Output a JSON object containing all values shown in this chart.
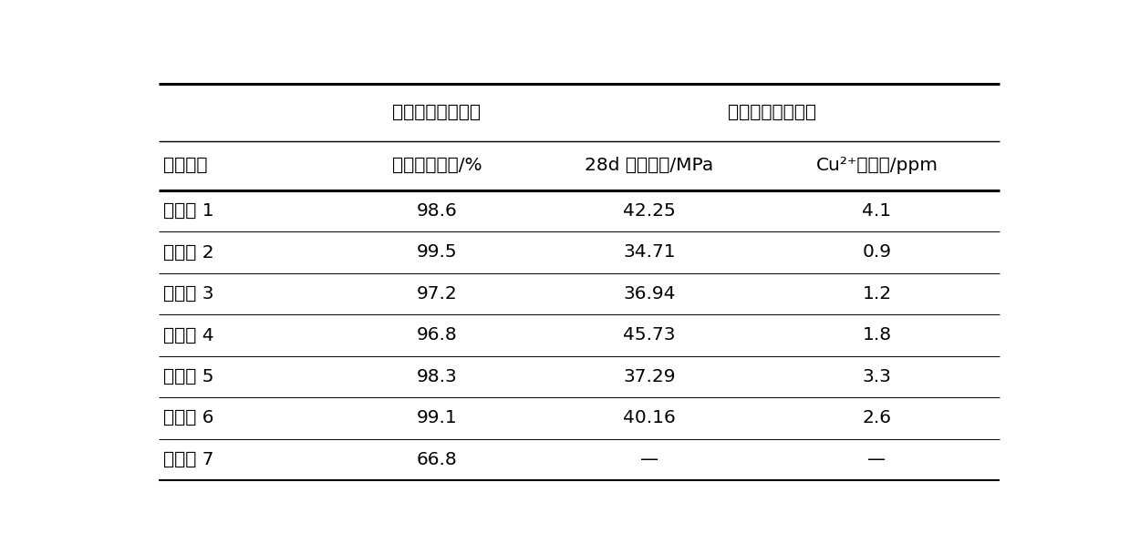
{
  "col_spans": [
    {
      "text": "赤泥基污水处理剂"
    },
    {
      "text": "赤泥基陶粒混凝土"
    }
  ],
  "col_headers": [
    "性能指标",
    "磷酸根吸附率/%",
    "28d 抗压强度/MPa",
    "Cu²⁺浸出量/ppm"
  ],
  "rows": [
    [
      "实施例 1",
      "98.6",
      "42.25",
      "4.1"
    ],
    [
      "实施例 2",
      "99.5",
      "34.71",
      "0.9"
    ],
    [
      "实施例 3",
      "97.2",
      "36.94",
      "1.2"
    ],
    [
      "实施例 4",
      "96.8",
      "45.73",
      "1.8"
    ],
    [
      "实施例 5",
      "98.3",
      "37.29",
      "3.3"
    ],
    [
      "实施例 6",
      "99.1",
      "40.16",
      "2.6"
    ],
    [
      "实施例 7",
      "66.8",
      "—",
      "—"
    ]
  ],
  "background_color": "#ffffff",
  "text_color": "#000000",
  "font_size": 14.5
}
